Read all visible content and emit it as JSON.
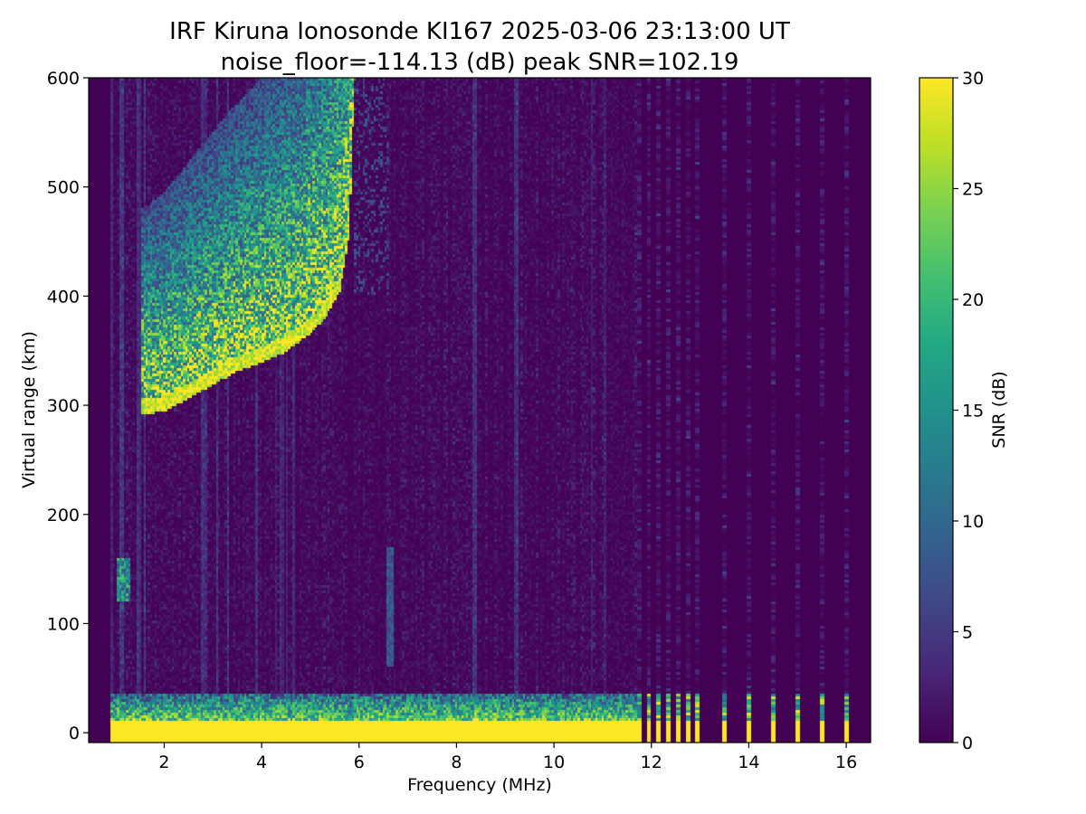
{
  "chart_data": {
    "type": "heatmap",
    "title": "IRF Kiruna Ionosonde KI167 2025-03-06 23:13:00  UT",
    "subtitle": "noise_floor=-114.13 (dB) peak SNR=102.19",
    "xlabel": "Frequency (MHz)",
    "ylabel": "Virtual range (km)",
    "colorbar_label": "SNR (dB)",
    "colormap": "viridis",
    "xlim": [
      0.45,
      16.5
    ],
    "ylim": [
      -9,
      600
    ],
    "clim": [
      0,
      30
    ],
    "x_ticks": [
      2,
      4,
      6,
      8,
      10,
      12,
      14,
      16
    ],
    "y_ticks": [
      0,
      100,
      200,
      300,
      400,
      500,
      600
    ],
    "colorbar_ticks": [
      0,
      5,
      10,
      15,
      20,
      25,
      30
    ],
    "grid": false,
    "sweep_start_mhz": 0.9,
    "sweep_end_mhz": 16.2,
    "features": {
      "ground_clutter": {
        "range_km": [
          0,
          35
        ],
        "freq_mhz": [
          0.9,
          11.7
        ],
        "snr_db": 30
      },
      "sparse_channels_mhz": [
        11.75,
        11.95,
        12.15,
        12.35,
        12.55,
        12.75,
        12.95,
        13.5,
        14.0,
        14.5,
        15.0,
        15.5,
        16.0
      ],
      "f_layer_trace": [
        {
          "f": 1.55,
          "h": 298
        },
        {
          "f": 2.0,
          "h": 300
        },
        {
          "f": 2.5,
          "h": 312
        },
        {
          "f": 3.0,
          "h": 325
        },
        {
          "f": 3.5,
          "h": 337
        },
        {
          "f": 4.0,
          "h": 345
        },
        {
          "f": 4.5,
          "h": 355
        },
        {
          "f": 5.0,
          "h": 372
        },
        {
          "f": 5.3,
          "h": 385
        },
        {
          "f": 5.6,
          "h": 410
        },
        {
          "f": 5.8,
          "h": 460
        },
        {
          "f": 5.9,
          "h": 600
        }
      ],
      "e_layer_echo": {
        "freq_mhz": [
          1.05,
          1.3
        ],
        "range_km": [
          120,
          160
        ]
      }
    }
  }
}
